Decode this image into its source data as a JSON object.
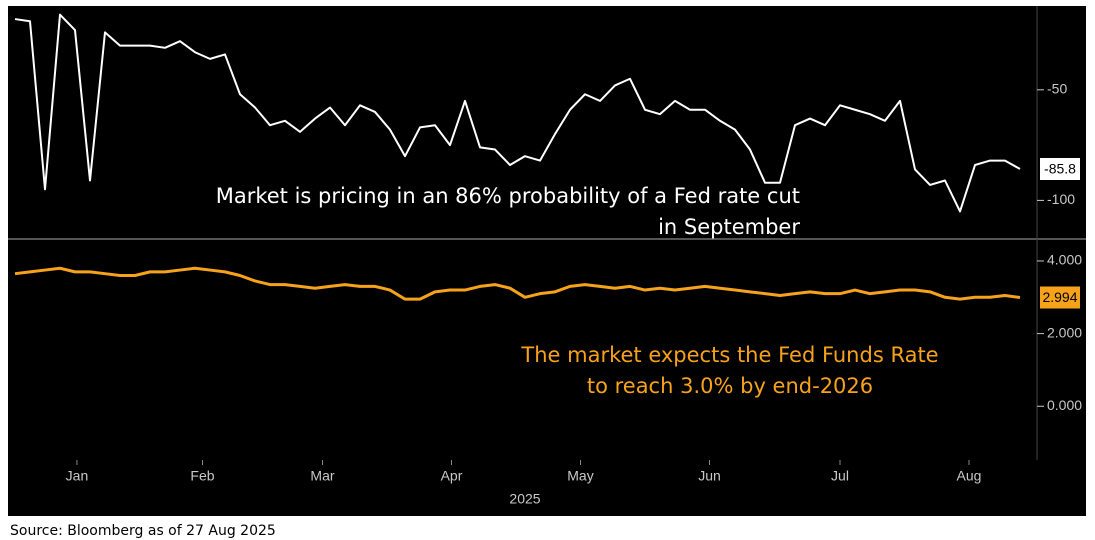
{
  "chart_data": [
    {
      "type": "line",
      "annotation": [
        "Market is pricing in an 86% probability of a Fed rate cut",
        "in September"
      ],
      "series": [
        {
          "color": "#ffffff",
          "values": [
            -18,
            -19,
            -95,
            -16,
            -23,
            -91,
            -24,
            -30,
            -30,
            -30,
            -31,
            -28,
            -33,
            -36,
            -34,
            -52,
            -58,
            -66,
            -64,
            -69,
            -63,
            -58,
            -66,
            -57,
            -60,
            -68,
            -80,
            -67,
            -66,
            -75,
            -55,
            -76,
            -77,
            -84,
            -80,
            -82,
            -70,
            -59,
            -52,
            -55,
            -48,
            -45,
            -59,
            -61,
            -55,
            -59,
            -59,
            -64,
            -68,
            -77,
            -92,
            -92,
            -66,
            -63,
            -66,
            -57,
            -59,
            -61,
            -64,
            -55,
            -86,
            -93,
            -91,
            -105,
            -84,
            -82,
            -82,
            -85.8
          ]
        }
      ],
      "xlim": [
        -0.333,
        68
      ],
      "ylim": [
        -117,
        -13
      ],
      "yticks": [
        -50,
        -100
      ]
    },
    {
      "type": "line",
      "annotation": [
        "The market expects the Fed Funds Rate",
        "to reach 3.0% by end-2026"
      ],
      "series": [
        {
          "color": "#f7a21b",
          "values": [
            3.65,
            3.7,
            3.75,
            3.8,
            3.7,
            3.7,
            3.65,
            3.6,
            3.6,
            3.7,
            3.7,
            3.75,
            3.8,
            3.75,
            3.7,
            3.6,
            3.45,
            3.35,
            3.35,
            3.3,
            3.25,
            3.3,
            3.35,
            3.3,
            3.3,
            3.2,
            2.95,
            2.95,
            3.15,
            3.2,
            3.2,
            3.3,
            3.35,
            3.25,
            3.0,
            3.1,
            3.15,
            3.3,
            3.35,
            3.3,
            3.25,
            3.3,
            3.2,
            3.25,
            3.2,
            3.25,
            3.3,
            3.25,
            3.2,
            3.15,
            3.1,
            3.05,
            3.1,
            3.15,
            3.1,
            3.1,
            3.2,
            3.1,
            3.15,
            3.2,
            3.2,
            3.15,
            3.0,
            2.95,
            3.0,
            3.0,
            3.05,
            2.994
          ]
        }
      ],
      "xlim": [
        -0.333,
        68
      ],
      "xticks": [
        {
          "value": 4.13,
          "label": "Jan"
        },
        {
          "value": 12.5,
          "label": "Feb"
        },
        {
          "value": 20.5,
          "label": "Mar"
        },
        {
          "value": 29.1,
          "label": "Apr"
        },
        {
          "value": 37.7,
          "label": "May"
        },
        {
          "value": 46.3,
          "label": "Jun"
        },
        {
          "value": 55,
          "label": "Jul"
        },
        {
          "value": 63.6,
          "label": "Aug"
        }
      ],
      "xlabel": "2025",
      "ylim": [
        -1.48,
        4.55
      ],
      "yticks": [
        {
          "value": 4,
          "label": "4.000"
        },
        {
          "value": 2,
          "label": "2.000"
        },
        {
          "value": 0,
          "label": "0.000"
        }
      ]
    }
  ],
  "source": "Source: Bloomberg as of 27 Aug 2025"
}
